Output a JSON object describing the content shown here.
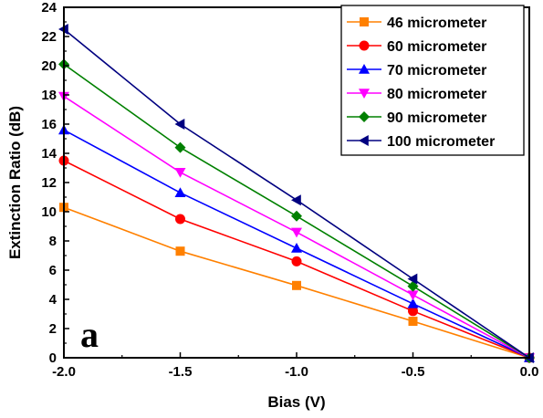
{
  "chart_data": {
    "type": "line",
    "xlabel": "Bias (V)",
    "ylabel": "Extinction Ratio (dB)",
    "xlim": [
      -2.0,
      0.0
    ],
    "ylim": [
      0,
      24
    ],
    "xticks": [
      -2.0,
      -1.5,
      -1.0,
      -0.5,
      0.0
    ],
    "xtick_labels": [
      "-2.0",
      "-1.5",
      "-1.0",
      "-0.5",
      "0.0"
    ],
    "yticks": [
      0,
      2,
      4,
      6,
      8,
      10,
      12,
      14,
      16,
      18,
      20,
      22,
      24
    ],
    "ytick_labels": [
      "0",
      "2",
      "4",
      "6",
      "8",
      "10",
      "12",
      "14",
      "16",
      "18",
      "20",
      "22",
      "24"
    ],
    "x": [
      -2.0,
      -1.5,
      -1.0,
      -0.5,
      0.0
    ],
    "grid": false,
    "legend_position": "top-right",
    "annotation": "a",
    "series": [
      {
        "name": "46 micrometer",
        "values": [
          10.3,
          7.3,
          4.95,
          2.5,
          0
        ],
        "color": "#ff8000",
        "marker": "square"
      },
      {
        "name": "60 micrometer",
        "values": [
          13.5,
          9.5,
          6.6,
          3.2,
          0
        ],
        "color": "#ff0000",
        "marker": "circle"
      },
      {
        "name": "70 micrometer",
        "values": [
          15.6,
          11.3,
          7.5,
          3.7,
          0
        ],
        "color": "#0000ff",
        "marker": "triangle-up"
      },
      {
        "name": "80 micrometer",
        "values": [
          17.9,
          12.7,
          8.6,
          4.3,
          0
        ],
        "color": "#ff00ff",
        "marker": "triangle-down"
      },
      {
        "name": "90 micrometer",
        "values": [
          20.1,
          14.4,
          9.7,
          4.9,
          0
        ],
        "color": "#008000",
        "marker": "diamond"
      },
      {
        "name": "100 micrometer",
        "values": [
          22.5,
          16.0,
          10.8,
          5.4,
          0
        ],
        "color": "#000080",
        "marker": "triangle-left"
      }
    ]
  }
}
